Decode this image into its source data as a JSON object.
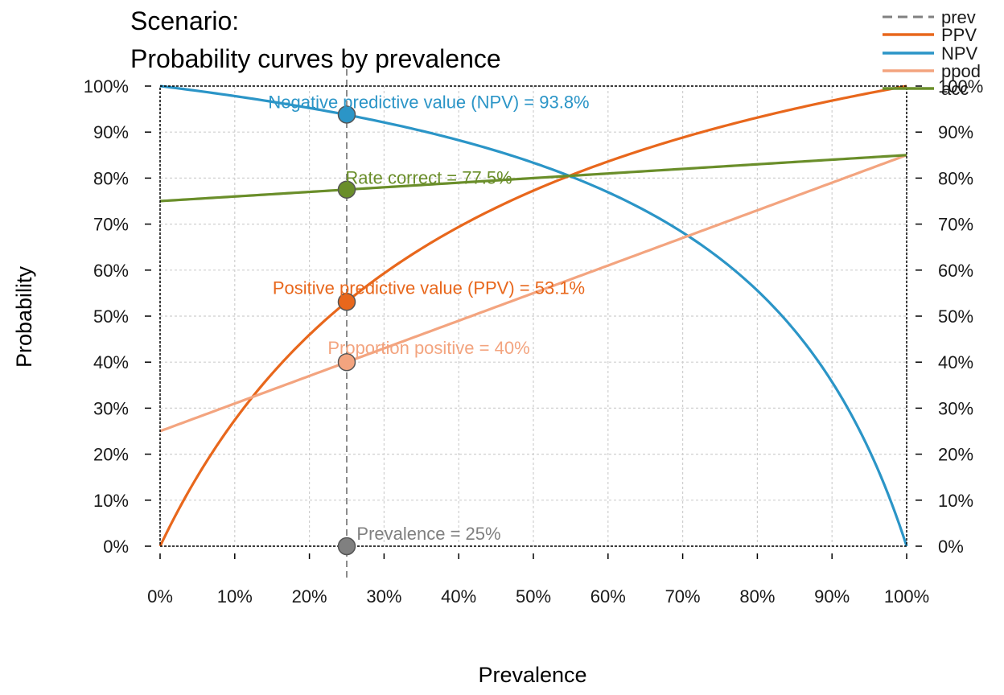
{
  "colors": {
    "prev": "#808080",
    "ppv": "#E8671C",
    "npv": "#2B95C7",
    "ppod": "#F3A47F",
    "acc": "#6A8E2A",
    "grid": "#cfcfcf",
    "axis": "#000000"
  },
  "chart_data": {
    "type": "line",
    "title_lines": [
      "Scenario:",
      "Probability curves by prevalence"
    ],
    "xlabel": "Prevalence",
    "ylabel": "Probability",
    "xlim": [
      0,
      1
    ],
    "ylim": [
      0,
      1
    ],
    "x_ticks": [
      "0%",
      "10%",
      "20%",
      "30%",
      "40%",
      "50%",
      "60%",
      "70%",
      "80%",
      "90%",
      "100%"
    ],
    "y_ticks": [
      "0%",
      "10%",
      "20%",
      "30%",
      "40%",
      "50%",
      "60%",
      "70%",
      "80%",
      "90%",
      "100%"
    ],
    "y_ticks_right": [
      "0%",
      "10%",
      "20%",
      "30%",
      "40%",
      "50%",
      "60%",
      "70%",
      "80%",
      "90%",
      "100%"
    ],
    "grid": true,
    "legend_position": "top-right",
    "legend": [
      "prev",
      "PPV",
      "NPV",
      "ppod",
      "acc"
    ],
    "sensitivity": 0.85,
    "specificity": 0.75,
    "prevalence": 0.25,
    "series": [
      {
        "name": "PPV",
        "formula": "ppv",
        "point_value": 0.531
      },
      {
        "name": "NPV",
        "formula": "npv",
        "point_value": 0.938
      },
      {
        "name": "ppod",
        "formula": "ppod",
        "point_value": 0.4
      },
      {
        "name": "acc",
        "formula": "acc",
        "point_value": 0.775
      }
    ],
    "annotations": {
      "npv": "Negative predictive value (NPV) = 93.8%",
      "acc": "Rate correct = 77.5%",
      "ppv": "Positive predictive value (PPV) = 53.1%",
      "ppod": "Proportion positive = 40%",
      "prev": "Prevalence = 25%"
    }
  }
}
